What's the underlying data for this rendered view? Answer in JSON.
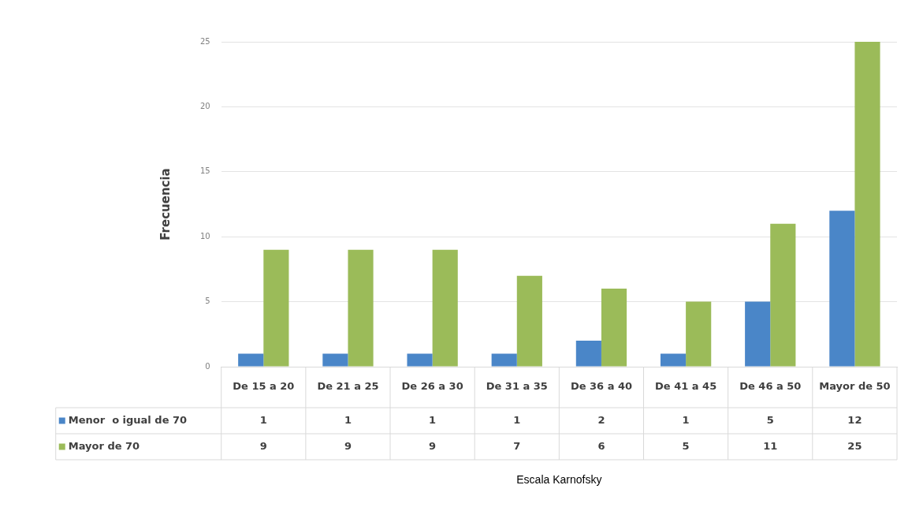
{
  "chart_data": {
    "type": "bar",
    "ylabel": "Frecuencia",
    "annotations": [
      "Escala Karnofsky"
    ],
    "categories": [
      "De 15 a 20",
      "De 21 a 25",
      "De 26 a 30",
      "De 31 a 35",
      "De 36 a 40",
      "De 41 a 45",
      "De 46 a 50",
      "Mayor de 50"
    ],
    "series": [
      {
        "name": "Menor  o igual de 70",
        "color": "#4a86c8",
        "values": [
          1,
          1,
          1,
          1,
          2,
          1,
          5,
          12
        ]
      },
      {
        "name": "Mayor de 70",
        "color": "#9bbb59",
        "values": [
          9,
          9,
          9,
          7,
          6,
          5,
          11,
          25
        ]
      }
    ],
    "ylim": [
      0,
      25
    ],
    "yticks": [
      0,
      5,
      10,
      15,
      20,
      25
    ],
    "grid": "y",
    "legend": "bottom",
    "data_labels": true
  }
}
